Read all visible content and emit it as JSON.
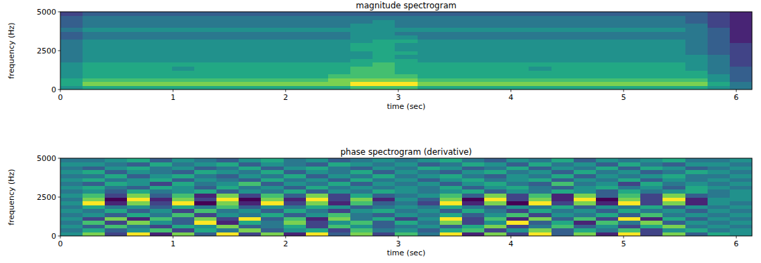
{
  "chart_data": [
    {
      "type": "heatmap",
      "title": "magnitude spectrogram",
      "x_label": "time (sec)",
      "y_label": "frequency (Hz)",
      "xlim": [
        0,
        6.14
      ],
      "xticks": [
        0,
        1,
        2,
        3,
        4,
        5,
        6
      ],
      "ylim": [
        0,
        5000
      ],
      "yticks": [
        0,
        2500,
        5000
      ],
      "zlim": [
        0,
        9
      ],
      "cells": [
        [
          5,
          6,
          6,
          6,
          6,
          6,
          6,
          6,
          6,
          6,
          6,
          6,
          6,
          7,
          7,
          7,
          6,
          6,
          6,
          6,
          6,
          6,
          6,
          6,
          6,
          6,
          6,
          6,
          6,
          5,
          4
        ],
        [
          6,
          8,
          8,
          8,
          8,
          8,
          8,
          8,
          8,
          8,
          8,
          8,
          8,
          9,
          9,
          9,
          8,
          8,
          8,
          8,
          8,
          8,
          8,
          8,
          8,
          8,
          8,
          8,
          8,
          6,
          4
        ],
        [
          6,
          7,
          7,
          7,
          7,
          7,
          7,
          7,
          7,
          7,
          7,
          7,
          8,
          8,
          8,
          8,
          7,
          7,
          7,
          7,
          7,
          7,
          7,
          7,
          7,
          7,
          7,
          7,
          7,
          5,
          3
        ],
        [
          5,
          6,
          6,
          6,
          6,
          6,
          6,
          6,
          6,
          6,
          6,
          6,
          7,
          7,
          7,
          7,
          6,
          6,
          6,
          6,
          6,
          6,
          6,
          6,
          6,
          6,
          6,
          6,
          6,
          5,
          3
        ],
        [
          5,
          6,
          6,
          6,
          6,
          6,
          6,
          6,
          6,
          6,
          6,
          6,
          6,
          7,
          7,
          6,
          6,
          6,
          6,
          6,
          6,
          6,
          6,
          6,
          6,
          6,
          6,
          6,
          6,
          4,
          3
        ],
        [
          5,
          6,
          6,
          6,
          6,
          5,
          6,
          6,
          6,
          6,
          6,
          6,
          6,
          7,
          7,
          6,
          6,
          6,
          6,
          6,
          6,
          5,
          6,
          6,
          6,
          6,
          6,
          6,
          5,
          4,
          3
        ],
        [
          5,
          6,
          6,
          6,
          6,
          6,
          6,
          6,
          6,
          6,
          6,
          6,
          6,
          6,
          7,
          6,
          6,
          6,
          6,
          6,
          6,
          6,
          6,
          6,
          6,
          6,
          6,
          6,
          5,
          4,
          2
        ],
        [
          4,
          5,
          5,
          5,
          5,
          5,
          5,
          5,
          5,
          5,
          5,
          5,
          5,
          6,
          6,
          6,
          5,
          5,
          5,
          5,
          5,
          5,
          5,
          5,
          5,
          5,
          5,
          5,
          5,
          4,
          2
        ],
        [
          4,
          5,
          5,
          5,
          5,
          5,
          5,
          5,
          5,
          5,
          5,
          5,
          5,
          5,
          6,
          5,
          5,
          5,
          5,
          5,
          5,
          5,
          5,
          5,
          5,
          5,
          5,
          5,
          5,
          4,
          2
        ],
        [
          4,
          5,
          5,
          5,
          5,
          5,
          5,
          5,
          5,
          5,
          5,
          5,
          5,
          5,
          6,
          6,
          5,
          5,
          5,
          5,
          5,
          5,
          5,
          5,
          5,
          5,
          5,
          5,
          4,
          3,
          2
        ],
        [
          4,
          5,
          5,
          5,
          5,
          5,
          5,
          5,
          5,
          5,
          5,
          5,
          5,
          6,
          6,
          5,
          5,
          5,
          5,
          5,
          5,
          5,
          5,
          5,
          5,
          5,
          5,
          5,
          4,
          3,
          2
        ],
        [
          4,
          5,
          5,
          5,
          5,
          5,
          5,
          5,
          5,
          5,
          5,
          5,
          5,
          6,
          6,
          5,
          5,
          5,
          5,
          5,
          5,
          5,
          5,
          5,
          5,
          5,
          5,
          5,
          4,
          3,
          2
        ],
        [
          4,
          5,
          5,
          5,
          5,
          5,
          5,
          5,
          5,
          5,
          5,
          5,
          5,
          5,
          6,
          6,
          5,
          5,
          5,
          5,
          5,
          5,
          5,
          5,
          5,
          5,
          5,
          5,
          4,
          3,
          1
        ],
        [
          3,
          4,
          4,
          4,
          4,
          4,
          4,
          4,
          4,
          4,
          4,
          4,
          4,
          5,
          5,
          5,
          4,
          4,
          4,
          4,
          4,
          4,
          4,
          4,
          4,
          4,
          4,
          4,
          4,
          3,
          1
        ],
        [
          3,
          4,
          4,
          4,
          4,
          4,
          4,
          4,
          4,
          4,
          4,
          4,
          4,
          5,
          5,
          4,
          4,
          4,
          4,
          4,
          4,
          4,
          4,
          4,
          4,
          4,
          4,
          4,
          4,
          3,
          1
        ],
        [
          4,
          5,
          5,
          5,
          5,
          5,
          5,
          5,
          5,
          5,
          5,
          5,
          5,
          5,
          5,
          5,
          5,
          5,
          5,
          5,
          5,
          5,
          5,
          5,
          5,
          5,
          5,
          5,
          4,
          3,
          1
        ],
        [
          3,
          4,
          4,
          4,
          4,
          4,
          4,
          4,
          4,
          4,
          4,
          4,
          4,
          5,
          5,
          4,
          4,
          4,
          4,
          4,
          4,
          4,
          4,
          4,
          4,
          4,
          4,
          4,
          4,
          2,
          1
        ],
        [
          3,
          4,
          4,
          4,
          4,
          4,
          4,
          4,
          4,
          4,
          4,
          4,
          4,
          4,
          5,
          4,
          4,
          4,
          4,
          4,
          4,
          4,
          4,
          4,
          4,
          4,
          4,
          4,
          3,
          2,
          1
        ],
        [
          3,
          4,
          4,
          4,
          4,
          4,
          4,
          4,
          4,
          4,
          4,
          4,
          4,
          4,
          4,
          4,
          4,
          4,
          4,
          4,
          4,
          4,
          4,
          4,
          4,
          4,
          4,
          4,
          3,
          2,
          1
        ],
        [
          2,
          3,
          3,
          3,
          3,
          3,
          3,
          3,
          3,
          3,
          3,
          3,
          3,
          3,
          3,
          3,
          3,
          3,
          3,
          3,
          3,
          3,
          3,
          3,
          3,
          3,
          3,
          3,
          3,
          2,
          1
        ]
      ]
    },
    {
      "type": "heatmap",
      "title": "phase spectrogram (derivative)",
      "x_label": "time (sec)",
      "y_label": "frequency (Hz)",
      "xlim": [
        0,
        6.14
      ],
      "xticks": [
        0,
        1,
        2,
        3,
        4,
        5,
        6
      ],
      "ylim": [
        0,
        5000
      ],
      "yticks": [
        0,
        2500,
        5000
      ],
      "zlim": [
        0,
        9
      ],
      "cells": [
        [
          5,
          8,
          2,
          9,
          1,
          8,
          3,
          9,
          2,
          8,
          1,
          9,
          3,
          8,
          2,
          7,
          4,
          9,
          1,
          8,
          2,
          9,
          3,
          8,
          1,
          9,
          2,
          8,
          3,
          6,
          5
        ],
        [
          4,
          6,
          3,
          5,
          7,
          2,
          6,
          4,
          8,
          3,
          5,
          6,
          2,
          7,
          4,
          5,
          3,
          6,
          7,
          2,
          5,
          8,
          3,
          6,
          4,
          7,
          2,
          5,
          6,
          4,
          5
        ],
        [
          5,
          3,
          7,
          4,
          2,
          6,
          5,
          8,
          3,
          4,
          6,
          2,
          7,
          5,
          3,
          4,
          5,
          3,
          6,
          8,
          2,
          4,
          7,
          3,
          5,
          2,
          6,
          8,
          4,
          5,
          4
        ],
        [
          4,
          7,
          2,
          8,
          5,
          3,
          9,
          1,
          6,
          4,
          8,
          2,
          5,
          7,
          3,
          6,
          4,
          8,
          2,
          5,
          9,
          3,
          6,
          1,
          7,
          4,
          8,
          3,
          5,
          4,
          5
        ],
        [
          5,
          2,
          8,
          1,
          7,
          3,
          8,
          2,
          9,
          3,
          7,
          1,
          8,
          4,
          6,
          2,
          5,
          9,
          2,
          7,
          1,
          8,
          3,
          7,
          2,
          9,
          1,
          6,
          3,
          5,
          4
        ],
        [
          4,
          5,
          3,
          6,
          4,
          7,
          2,
          5,
          4,
          6,
          3,
          5,
          7,
          4,
          3,
          5,
          4,
          6,
          3,
          5,
          7,
          2,
          5,
          4,
          6,
          3,
          7,
          4,
          5,
          4,
          5
        ],
        [
          5,
          4,
          6,
          3,
          5,
          2,
          7,
          4,
          5,
          3,
          6,
          4,
          2,
          5,
          6,
          4,
          5,
          3,
          6,
          4,
          2,
          6,
          4,
          5,
          3,
          6,
          4,
          5,
          3,
          5,
          4
        ],
        [
          4,
          6,
          4,
          5,
          3,
          6,
          4,
          7,
          3,
          5,
          4,
          6,
          5,
          3,
          4,
          5,
          4,
          6,
          4,
          3,
          5,
          4,
          6,
          3,
          5,
          4,
          6,
          3,
          5,
          4,
          5
        ],
        [
          5,
          9,
          1,
          8,
          2,
          9,
          0,
          8,
          1,
          9,
          2,
          8,
          1,
          7,
          3,
          4,
          2,
          9,
          1,
          8,
          0,
          9,
          2,
          8,
          1,
          9,
          2,
          8,
          1,
          5,
          4
        ],
        [
          4,
          8,
          0,
          9,
          1,
          8,
          2,
          9,
          0,
          8,
          1,
          9,
          2,
          8,
          1,
          5,
          3,
          8,
          0,
          9,
          2,
          8,
          1,
          9,
          0,
          8,
          2,
          9,
          1,
          5,
          5
        ],
        [
          5,
          7,
          2,
          8,
          3,
          7,
          1,
          8,
          2,
          7,
          3,
          8,
          2,
          6,
          3,
          4,
          5,
          7,
          3,
          8,
          2,
          7,
          1,
          8,
          3,
          7,
          2,
          8,
          3,
          4,
          5
        ],
        [
          4,
          5,
          3,
          6,
          4,
          5,
          6,
          3,
          5,
          4,
          6,
          3,
          5,
          4,
          6,
          5,
          4,
          5,
          6,
          3,
          5,
          4,
          6,
          5,
          3,
          6,
          4,
          5,
          6,
          4,
          5
        ],
        [
          5,
          6,
          4,
          3,
          6,
          5,
          3,
          6,
          4,
          5,
          3,
          6,
          4,
          5,
          4,
          5,
          4,
          6,
          3,
          5,
          6,
          4,
          3,
          5,
          6,
          4,
          5,
          3,
          6,
          5,
          4
        ],
        [
          4,
          3,
          6,
          5,
          2,
          6,
          4,
          5,
          7,
          3,
          5,
          4,
          6,
          3,
          5,
          4,
          5,
          3,
          5,
          6,
          4,
          3,
          7,
          4,
          5,
          2,
          6,
          4,
          5,
          4,
          5
        ],
        [
          5,
          6,
          4,
          5,
          6,
          3,
          5,
          4,
          3,
          6,
          4,
          5,
          3,
          6,
          4,
          5,
          3,
          5,
          6,
          4,
          5,
          6,
          3,
          5,
          4,
          6,
          3,
          5,
          4,
          5,
          4
        ],
        [
          4,
          4,
          6,
          3,
          5,
          6,
          4,
          3,
          5,
          4,
          6,
          3,
          5,
          4,
          6,
          4,
          5,
          6,
          4,
          3,
          5,
          4,
          6,
          3,
          5,
          4,
          5,
          6,
          4,
          4,
          5
        ],
        [
          5,
          6,
          3,
          5,
          4,
          3,
          6,
          5,
          4,
          6,
          3,
          5,
          4,
          6,
          3,
          5,
          4,
          3,
          5,
          6,
          4,
          5,
          3,
          6,
          4,
          5,
          3,
          4,
          6,
          5,
          4
        ],
        [
          4,
          3,
          5,
          6,
          4,
          5,
          3,
          4,
          6,
          3,
          5,
          6,
          4,
          3,
          5,
          4,
          6,
          5,
          3,
          4,
          6,
          3,
          5,
          4,
          6,
          3,
          6,
          5,
          3,
          4,
          5
        ],
        [
          5,
          5,
          4,
          3,
          6,
          4,
          5,
          6,
          3,
          5,
          4,
          3,
          6,
          5,
          4,
          5,
          3,
          4,
          6,
          5,
          3,
          6,
          4,
          5,
          3,
          6,
          4,
          3,
          5,
          5,
          4
        ],
        [
          4,
          4,
          5,
          6,
          3,
          5,
          4,
          3,
          5,
          6,
          4,
          5,
          3,
          4,
          5,
          4,
          5,
          6,
          4,
          3,
          5,
          4,
          6,
          3,
          5,
          4,
          5,
          6,
          4,
          4,
          5
        ]
      ]
    }
  ]
}
